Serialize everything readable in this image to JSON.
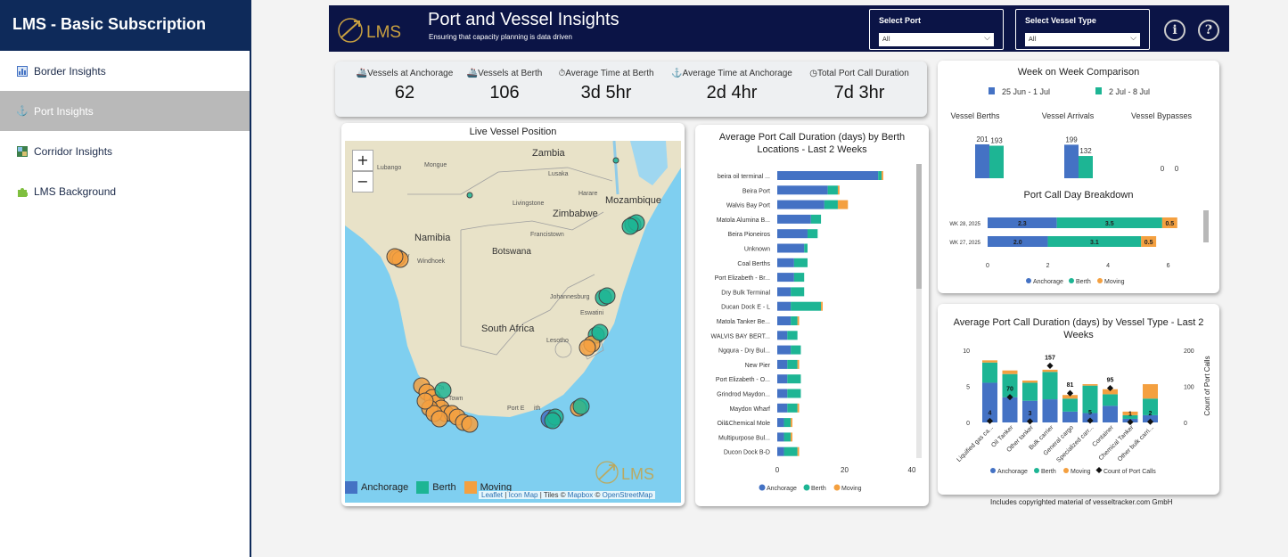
{
  "sidebar": {
    "brand": "LMS - Basic Subscription",
    "items": [
      {
        "label": "Border Insights",
        "icon": "chart-icon",
        "active": false
      },
      {
        "label": "Port Insights",
        "icon": "anchor-icon",
        "active": true
      },
      {
        "label": "Corridor Insights",
        "icon": "map-icon",
        "active": false
      },
      {
        "label": "LMS Background",
        "icon": "puzzle-icon",
        "active": false
      }
    ]
  },
  "header": {
    "logo_text": "LMS",
    "title": "Port and Vessel Insights",
    "subtitle": "Ensuring that capacity planning is data driven",
    "port_slicer": {
      "label": "Select Port",
      "value": "All"
    },
    "vessel_slicer": {
      "label": "Select Vessel Type",
      "value": "All"
    },
    "info_icon": "i",
    "help_icon": "?"
  },
  "kpis": [
    {
      "label": "Vessels at Anchorage",
      "value": "62",
      "icon": "ship-icon"
    },
    {
      "label": "Vessels at Berth",
      "value": "106",
      "icon": "ship-berth-icon"
    },
    {
      "label": "Average Time at Berth",
      "value": "3d 5hr",
      "icon": "stopwatch-icon"
    },
    {
      "label": "Average Time at Anchorage",
      "value": "2d 4hr",
      "icon": "anchor-icon"
    },
    {
      "label": "Total Port Call Duration",
      "value": "7d 3hr",
      "icon": "clock-icon"
    }
  ],
  "map": {
    "title": "Live Vessel Position",
    "zoom_in": "+",
    "zoom_out": "−",
    "legend": [
      "Anchorage",
      "Berth",
      "Moving"
    ],
    "watermark": "LMS",
    "attribution": {
      "leaflet": "Leaflet",
      "sep1": " | ",
      "icon_map": "Icon Map",
      "tiles": " | Tiles © ",
      "mapbox": "Mapbox",
      "sep2": " © ",
      "osm": "OpenStreetMap"
    },
    "labels": {
      "zambia": "Zambia",
      "mozambique": "Mozambique",
      "zimbabwe": "Zimbabwe",
      "namibia": "Namibia",
      "botswana": "Botswana",
      "south_africa": "South Africa",
      "lubango": "Lubango",
      "mongue": "Mongue",
      "lusaka": "Lusaka",
      "livingstone": "Livingstone",
      "harare": "Harare",
      "francistown": "Francistown",
      "windhoek": "Windhoek",
      "johannesburg": "Johannesburg",
      "eswatini": "Eswatini",
      "lesotho": "Lesotho",
      "town": "Town",
      "port_e": "Port E",
      "ith": "ith",
      "by": "ay",
      "ta": "Ta"
    }
  },
  "colors": {
    "anchorage": "#4472c4",
    "berth": "#1db594",
    "moving": "#f4a040",
    "navy": "#0b1446",
    "sea": "#7fcff0",
    "land": "#e8e2c8"
  },
  "chart_data": [
    {
      "id": "berth",
      "type": "bar",
      "orientation": "horizontal",
      "stacked": true,
      "title": "Average Port Call Duration (days) by Berth Locations - Last 2 Weeks",
      "categories": [
        "beira oil terminal ...",
        "Beira Port",
        "Walvis Bay Port",
        "Matola Alumina B...",
        "Beira Pioneiros",
        "Unknown",
        "Coal Berths",
        "Port Elizabeth - Br...",
        "Dry Bulk Terminal",
        "Ducan Dock E - L",
        "Matola Tanker Be...",
        "WALVIS BAY BERT...",
        "Ngqura - Dry Bul...",
        "New Pier",
        "Port Elizabeth - O...",
        "Grindrod Maydon...",
        "Maydon Wharf",
        "Oil&Chemical Mole",
        "Multipurpose Bul...",
        "Ducon Dock B-D"
      ],
      "series": [
        {
          "name": "Anchorage",
          "values": [
            30,
            15,
            14,
            10,
            9,
            8,
            5,
            5,
            4,
            4,
            4,
            3,
            4,
            3,
            3,
            3,
            3,
            2,
            2,
            2
          ]
        },
        {
          "name": "Berth",
          "values": [
            1,
            3,
            4,
            3,
            3,
            1,
            4,
            3,
            4,
            9,
            2,
            3,
            3,
            3,
            4,
            4,
            3,
            2,
            2,
            4
          ]
        },
        {
          "name": "Moving",
          "values": [
            0.5,
            0.5,
            3,
            0,
            0,
            0,
            0,
            0,
            0,
            0.5,
            0.5,
            0,
            0,
            0.5,
            0,
            0,
            0.5,
            0.5,
            0.5,
            0.5
          ]
        }
      ],
      "xticks": [
        0,
        20,
        40
      ],
      "xlim": [
        0,
        40
      ],
      "legend": [
        "Anchorage",
        "Berth",
        "Moving"
      ]
    },
    {
      "id": "wow",
      "type": "bar",
      "title": "Week on Week Comparison",
      "legend": [
        "25 Jun - 1 Jul",
        "2 Jul - 8 Jul"
      ],
      "groups": [
        "Vessel Berths",
        "Vessel Arrivals",
        "Vessel Bypasses"
      ],
      "series": [
        {
          "name": "25 Jun - 1 Jul",
          "values": [
            201,
            199,
            0
          ]
        },
        {
          "name": "2 Jul - 8 Jul",
          "values": [
            193,
            132,
            0
          ]
        }
      ],
      "labels": [
        [
          "201",
          "193"
        ],
        [
          "199",
          "132"
        ],
        [
          "0",
          "0"
        ]
      ]
    },
    {
      "id": "daybreakdown",
      "type": "bar",
      "orientation": "horizontal",
      "stacked": true,
      "title": "Port Call Day Breakdown",
      "categories": [
        "WK 28, 2025",
        "WK 27, 2025"
      ],
      "series": [
        {
          "name": "Anchorage",
          "values": [
            2.3,
            2.0
          ],
          "labels": [
            "2.3",
            "2.0"
          ]
        },
        {
          "name": "Berth",
          "values": [
            3.5,
            3.1
          ],
          "labels": [
            "3.5",
            "3.1"
          ]
        },
        {
          "name": "Moving",
          "values": [
            0.5,
            0.5
          ],
          "labels": [
            "0.5",
            "0.5"
          ]
        }
      ],
      "xticks": [
        0,
        2,
        4,
        6
      ],
      "xlim": [
        0,
        6.1
      ],
      "legend": [
        "Anchorage",
        "Berth",
        "Moving"
      ]
    },
    {
      "id": "vesseltype",
      "type": "bar",
      "stacked": true,
      "title": "Average Port Call Duration (days) by Vessel Type - Last 2 Weeks",
      "categories": [
        "Liquified gas ca...",
        "Oil Tanker",
        "Other tanker",
        "Bulk carrier",
        "General cargo",
        "Specialized carr...",
        "Container",
        "Chemical Tanker",
        "Other bulk carri..."
      ],
      "series": [
        {
          "name": "Anchorage",
          "values": [
            5.5,
            3.5,
            3.0,
            3.2,
            1.5,
            1.3,
            2.3,
            0.5,
            1.0
          ]
        },
        {
          "name": "Berth",
          "values": [
            2.8,
            3.2,
            2.5,
            3.8,
            1.8,
            3.8,
            1.6,
            0.5,
            2.3
          ]
        },
        {
          "name": "Moving",
          "values": [
            0.3,
            0.5,
            0.3,
            0.3,
            0.5,
            0.2,
            0.7,
            0.5,
            2.0
          ]
        },
        {
          "name": "Count of Port Calls",
          "values": [
            4,
            70,
            3,
            157,
            81,
            5,
            95,
            1,
            2
          ],
          "labels": [
            "4",
            "70",
            "3",
            "157",
            "81",
            "5",
            "95",
            "1",
            "2"
          ]
        }
      ],
      "yticks_left": [
        "0",
        "5",
        "10"
      ],
      "ylim_left": [
        0,
        10
      ],
      "yticks_right": [
        "0",
        "100",
        "200"
      ],
      "ylim_right": [
        0,
        200
      ],
      "ylabel_right": "Count of Port Calls",
      "legend": [
        "Anchorage",
        "Berth",
        "Moving",
        "Count of Port Calls"
      ]
    }
  ],
  "copyright": "Includes copyrighted material of vesseltracker.com GmbH"
}
